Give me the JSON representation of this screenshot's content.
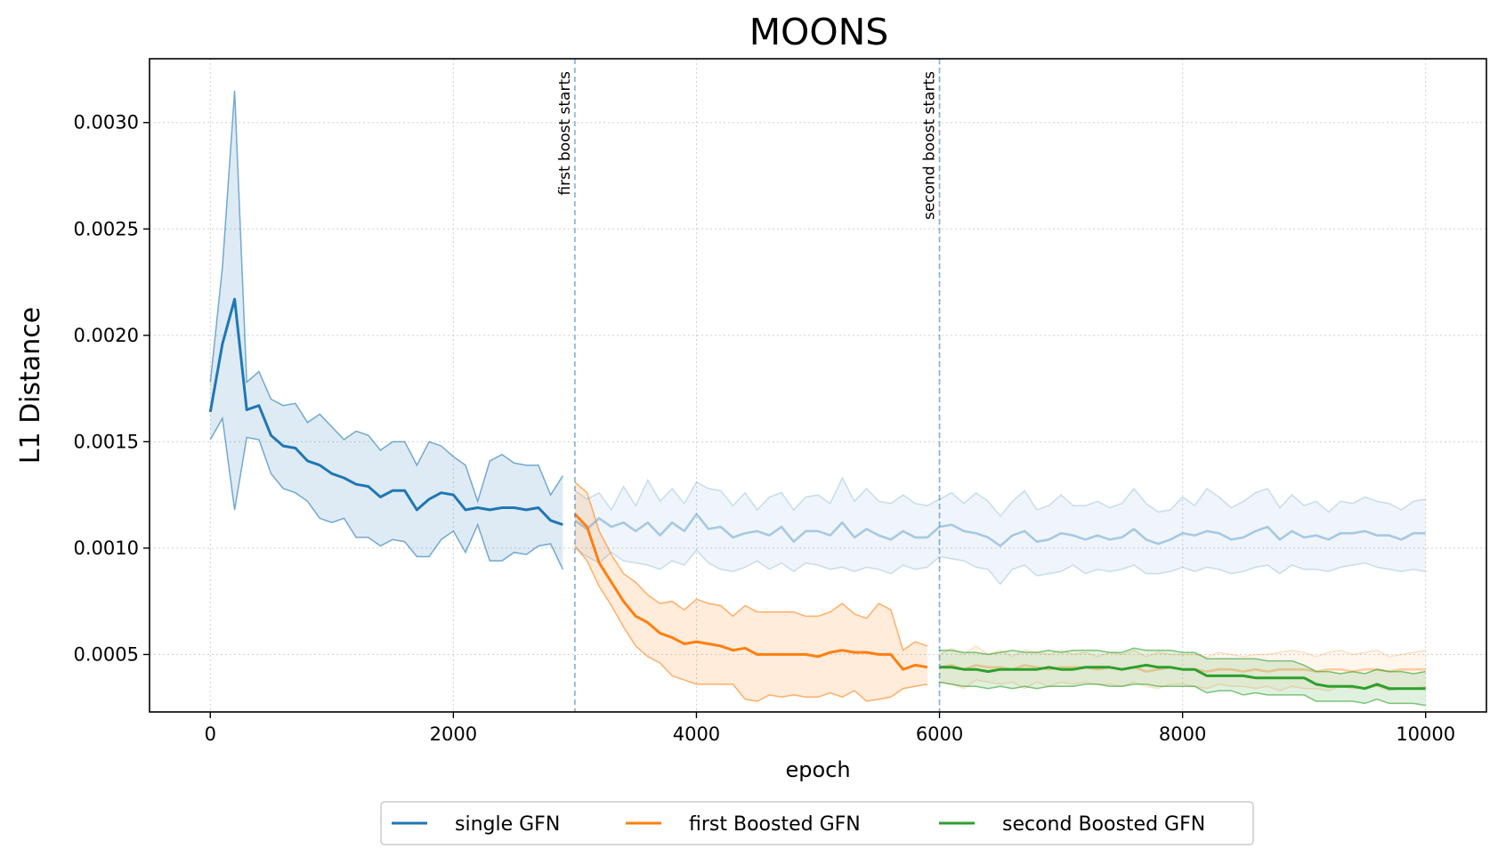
{
  "chart_data": {
    "type": "line",
    "title": "MOONS",
    "xlabel": "epoch",
    "ylabel": "L1 Distance",
    "xlim": [
      -500,
      10500
    ],
    "ylim": [
      0.00023,
      0.0033
    ],
    "xticks": [
      0,
      2000,
      4000,
      6000,
      8000,
      10000
    ],
    "xtick_labels": [
      "0",
      "2000",
      "4000",
      "6000",
      "8000",
      "10000"
    ],
    "yticks": [
      0.0005,
      0.001,
      0.0015,
      0.002,
      0.0025,
      0.003
    ],
    "ytick_labels": [
      "0.0005",
      "0.0010",
      "0.0015",
      "0.0020",
      "0.0025",
      "0.0030"
    ],
    "grid": true,
    "legend_position": "bottom-center",
    "annotations": [
      {
        "x": 3000,
        "text": "first boost starts"
      },
      {
        "x": 6000,
        "text": "second boost starts"
      }
    ],
    "series": [
      {
        "name": "single GFN",
        "color": "#1f77b4",
        "x": [
          0,
          100,
          200,
          300,
          400,
          500,
          600,
          700,
          800,
          900,
          1000,
          1100,
          1200,
          1300,
          1400,
          1500,
          1600,
          1700,
          1800,
          1900,
          2000,
          2100,
          2200,
          2300,
          2400,
          2500,
          2600,
          2700,
          2800,
          2900
        ],
        "mean": [
          0.00164,
          0.00196,
          0.00217,
          0.00165,
          0.00167,
          0.00153,
          0.00148,
          0.00147,
          0.00141,
          0.00139,
          0.00135,
          0.00133,
          0.0013,
          0.00129,
          0.00124,
          0.00127,
          0.00127,
          0.00118,
          0.00123,
          0.00126,
          0.00125,
          0.00118,
          0.00119,
          0.00118,
          0.00119,
          0.00119,
          0.00118,
          0.00119,
          0.00113,
          0.00111
        ],
        "upper": [
          0.00178,
          0.00232,
          0.00315,
          0.00178,
          0.00183,
          0.0017,
          0.00167,
          0.00168,
          0.00159,
          0.00163,
          0.00157,
          0.00151,
          0.00155,
          0.00153,
          0.00146,
          0.0015,
          0.0015,
          0.00139,
          0.0015,
          0.00148,
          0.00143,
          0.00139,
          0.00122,
          0.00141,
          0.00144,
          0.0014,
          0.00139,
          0.00139,
          0.00125,
          0.00134
        ],
        "lower": [
          0.00151,
          0.00161,
          0.00118,
          0.00152,
          0.00151,
          0.00135,
          0.00128,
          0.00126,
          0.00122,
          0.00114,
          0.00112,
          0.00114,
          0.00105,
          0.00105,
          0.00101,
          0.00104,
          0.00103,
          0.00096,
          0.00096,
          0.00104,
          0.00108,
          0.00098,
          0.00111,
          0.00094,
          0.00094,
          0.00098,
          0.00097,
          0.00101,
          0.00102,
          0.0009
        ],
        "continuation": {
          "x": [
            3000,
            3100,
            3200,
            3300,
            3400,
            3500,
            3600,
            3700,
            3800,
            3900,
            4000,
            4100,
            4200,
            4300,
            4400,
            4500,
            4600,
            4700,
            4800,
            4900,
            5000,
            5100,
            5200,
            5300,
            5400,
            5500,
            5600,
            5700,
            5800,
            5900,
            6000,
            6100,
            6200,
            6300,
            6400,
            6500,
            6600,
            6700,
            6800,
            6900,
            7000,
            7100,
            7200,
            7300,
            7400,
            7500,
            7600,
            7700,
            7800,
            7900,
            8000,
            8100,
            8200,
            8300,
            8400,
            8500,
            8600,
            8700,
            8800,
            8900,
            9000,
            9100,
            9200,
            9300,
            9400,
            9500,
            9600,
            9700,
            9800,
            9900,
            10000
          ],
          "mean": [
            0.00113,
            0.00109,
            0.00114,
            0.0011,
            0.00112,
            0.00108,
            0.00112,
            0.00106,
            0.00112,
            0.00108,
            0.00116,
            0.00109,
            0.0011,
            0.00105,
            0.00107,
            0.00108,
            0.00106,
            0.0011,
            0.00103,
            0.00108,
            0.00108,
            0.00106,
            0.00112,
            0.00105,
            0.00109,
            0.00106,
            0.00104,
            0.00108,
            0.00105,
            0.00105,
            0.0011,
            0.00111,
            0.00108,
            0.00107,
            0.00105,
            0.00101,
            0.00106,
            0.00108,
            0.00103,
            0.00104,
            0.00107,
            0.00106,
            0.00104,
            0.00106,
            0.00104,
            0.00105,
            0.00109,
            0.00104,
            0.00102,
            0.00104,
            0.00107,
            0.00106,
            0.00108,
            0.00107,
            0.00104,
            0.00105,
            0.00108,
            0.0011,
            0.00104,
            0.00108,
            0.00105,
            0.00106,
            0.00104,
            0.00107,
            0.00107,
            0.00108,
            0.00106,
            0.00106,
            0.00104,
            0.00107,
            0.00107
          ],
          "upper": [
            0.00127,
            0.00123,
            0.00126,
            0.00118,
            0.00129,
            0.0012,
            0.00132,
            0.00122,
            0.00128,
            0.00121,
            0.00131,
            0.00128,
            0.00127,
            0.0012,
            0.00126,
            0.00118,
            0.00124,
            0.00126,
            0.00118,
            0.00124,
            0.00125,
            0.00121,
            0.00133,
            0.00122,
            0.00128,
            0.00122,
            0.00121,
            0.00125,
            0.00121,
            0.0012,
            0.00123,
            0.00126,
            0.00121,
            0.00126,
            0.00122,
            0.00115,
            0.00122,
            0.00127,
            0.00118,
            0.0012,
            0.00125,
            0.0012,
            0.0012,
            0.00122,
            0.00119,
            0.00121,
            0.00128,
            0.00121,
            0.00117,
            0.00118,
            0.00124,
            0.0012,
            0.00128,
            0.00124,
            0.00119,
            0.00122,
            0.00126,
            0.00128,
            0.00119,
            0.00125,
            0.0012,
            0.00122,
            0.00117,
            0.00122,
            0.00121,
            0.00124,
            0.00122,
            0.00121,
            0.00118,
            0.00122,
            0.00123
          ],
          "lower": [
            0.001,
            0.00096,
            0.00093,
            0.00098,
            0.00094,
            0.00093,
            0.00092,
            0.0009,
            0.00094,
            0.00092,
            0.00099,
            0.00093,
            0.0009,
            0.00089,
            0.00091,
            0.00094,
            0.0009,
            0.00093,
            0.00089,
            0.00093,
            0.00092,
            0.0009,
            0.00091,
            0.00089,
            0.00091,
            0.0009,
            0.00088,
            0.00092,
            0.0009,
            0.00091,
            0.00096,
            0.00095,
            0.00094,
            0.00091,
            0.0009,
            0.00083,
            0.0009,
            0.00092,
            0.00087,
            0.00088,
            0.00089,
            0.00092,
            0.00088,
            0.0009,
            0.00089,
            0.0009,
            0.00092,
            0.00088,
            0.00088,
            0.00089,
            0.00091,
            0.00089,
            0.00091,
            0.0009,
            0.00088,
            0.00089,
            0.00091,
            0.00092,
            0.00088,
            0.00092,
            0.0009,
            0.0009,
            0.00089,
            0.00091,
            0.00092,
            0.00093,
            0.00091,
            0.0009,
            0.00089,
            0.0009,
            0.00089
          ]
        }
      },
      {
        "name": "first Boosted GFN",
        "color": "#ff7f0e",
        "x": [
          3000,
          3100,
          3200,
          3300,
          3400,
          3500,
          3600,
          3700,
          3800,
          3900,
          4000,
          4100,
          4200,
          4300,
          4400,
          4500,
          4600,
          4700,
          4800,
          4900,
          5000,
          5100,
          5200,
          5300,
          5400,
          5500,
          5600,
          5700,
          5800,
          5900
        ],
        "mean": [
          0.00116,
          0.0011,
          0.00093,
          0.00084,
          0.00075,
          0.00068,
          0.00065,
          0.0006,
          0.00058,
          0.00055,
          0.00056,
          0.00055,
          0.00054,
          0.00052,
          0.00053,
          0.0005,
          0.0005,
          0.0005,
          0.0005,
          0.0005,
          0.00049,
          0.00051,
          0.00052,
          0.00051,
          0.00051,
          0.0005,
          0.0005,
          0.00043,
          0.00045,
          0.00044
        ],
        "upper": [
          0.00131,
          0.00126,
          0.00108,
          0.00097,
          0.00088,
          0.00084,
          0.00078,
          0.00074,
          0.00075,
          0.00071,
          0.00076,
          0.00074,
          0.00073,
          0.00068,
          0.00073,
          0.0007,
          0.0007,
          0.0007,
          0.0007,
          0.00068,
          0.00068,
          0.0007,
          0.00074,
          0.00069,
          0.00067,
          0.00074,
          0.00071,
          0.00052,
          0.00056,
          0.00054
        ],
        "lower": [
          0.00101,
          0.00094,
          0.00082,
          0.00073,
          0.00063,
          0.00054,
          0.00049,
          0.00046,
          0.0004,
          0.00038,
          0.00036,
          0.00036,
          0.00036,
          0.00036,
          0.00029,
          0.00028,
          0.00031,
          0.0003,
          0.00031,
          0.0003,
          0.0003,
          0.00032,
          0.0003,
          0.00033,
          0.00028,
          0.00029,
          0.0003,
          0.00034,
          0.00035,
          0.00036
        ],
        "continuation": {
          "x": [
            6000,
            6100,
            6200,
            6300,
            6400,
            6500,
            6600,
            6700,
            6800,
            6900,
            7000,
            7100,
            7200,
            7300,
            7400,
            7500,
            7600,
            7700,
            7800,
            7900,
            8000,
            8100,
            8200,
            8300,
            8400,
            8500,
            8600,
            8700,
            8800,
            8900,
            9000,
            9100,
            9200,
            9300,
            9400,
            9500,
            9600,
            9700,
            9800,
            9900,
            10000
          ],
          "mean": [
            0.00044,
            0.00045,
            0.00043,
            0.00045,
            0.00044,
            0.00044,
            0.00043,
            0.00045,
            0.00044,
            0.00043,
            0.00044,
            0.00044,
            0.00044,
            0.00043,
            0.00044,
            0.00043,
            0.00044,
            0.00042,
            0.00043,
            0.00044,
            0.00043,
            0.00043,
            0.00042,
            0.00043,
            0.00043,
            0.00042,
            0.00043,
            0.00042,
            0.00043,
            0.00043,
            0.00043,
            0.00042,
            0.00043,
            0.00043,
            0.00042,
            0.00043,
            0.00043,
            0.00042,
            0.00043,
            0.00043,
            0.00043
          ],
          "upper": [
            0.0005,
            0.00053,
            0.0005,
            0.00054,
            0.0005,
            0.00052,
            0.00049,
            0.00052,
            0.00051,
            0.0005,
            0.00052,
            0.0005,
            0.00051,
            0.00049,
            0.00051,
            0.0005,
            0.00052,
            0.00049,
            0.00051,
            0.0005,
            0.0005,
            0.0005,
            0.00049,
            0.00051,
            0.0005,
            0.00049,
            0.0005,
            0.0005,
            0.00051,
            0.00052,
            0.00051,
            0.00049,
            0.00051,
            0.00052,
            0.0005,
            0.00051,
            0.00052,
            0.00049,
            0.0005,
            0.00051,
            0.00052
          ],
          "lower": [
            0.00037,
            0.00036,
            0.00034,
            0.00038,
            0.00037,
            0.00036,
            0.00037,
            0.00034,
            0.00037,
            0.00035,
            0.00037,
            0.00036,
            0.00037,
            0.00036,
            0.00036,
            0.00035,
            0.00037,
            0.00035,
            0.00034,
            0.00036,
            0.00036,
            0.00035,
            0.00034,
            0.00036,
            0.00035,
            0.00035,
            0.00034,
            0.00035,
            0.00033,
            0.00035,
            0.00034,
            0.00034,
            0.00033,
            0.00035,
            0.00034,
            0.00034,
            0.00035,
            0.00033,
            0.00034,
            0.00034,
            0.00035
          ]
        }
      },
      {
        "name": "second Boosted GFN",
        "color": "#2ca02c",
        "x": [
          6000,
          6100,
          6200,
          6300,
          6400,
          6500,
          6600,
          6700,
          6800,
          6900,
          7000,
          7100,
          7200,
          7300,
          7400,
          7500,
          7600,
          7700,
          7800,
          7900,
          8000,
          8100,
          8200,
          8300,
          8400,
          8500,
          8600,
          8700,
          8800,
          8900,
          9000,
          9100,
          9200,
          9300,
          9400,
          9500,
          9600,
          9700,
          9800,
          9900,
          10000
        ],
        "mean": [
          0.00044,
          0.00044,
          0.00043,
          0.00043,
          0.00042,
          0.00043,
          0.00043,
          0.00043,
          0.00043,
          0.00044,
          0.00043,
          0.00043,
          0.00044,
          0.00044,
          0.00044,
          0.00043,
          0.00044,
          0.00045,
          0.00044,
          0.00044,
          0.00043,
          0.00043,
          0.0004,
          0.0004,
          0.0004,
          0.0004,
          0.00039,
          0.00039,
          0.00039,
          0.00039,
          0.00039,
          0.00036,
          0.00035,
          0.00035,
          0.00035,
          0.00034,
          0.00036,
          0.00034,
          0.00034,
          0.00034,
          0.00034
        ],
        "upper": [
          0.00052,
          0.00052,
          0.00051,
          0.00051,
          0.0005,
          0.00051,
          0.00052,
          0.00051,
          0.00051,
          0.00052,
          0.00051,
          0.00052,
          0.00052,
          0.00052,
          0.00051,
          0.00051,
          0.00053,
          0.00052,
          0.00052,
          0.00052,
          0.00051,
          0.00051,
          0.00048,
          0.00048,
          0.00048,
          0.00048,
          0.00048,
          0.00047,
          0.00047,
          0.00047,
          0.00045,
          0.00042,
          0.00042,
          0.00041,
          0.00042,
          0.00041,
          0.00043,
          0.00042,
          0.00042,
          0.00041,
          0.00042
        ],
        "lower": [
          0.00037,
          0.00036,
          0.00035,
          0.00035,
          0.00034,
          0.00035,
          0.00034,
          0.00035,
          0.00034,
          0.00035,
          0.00035,
          0.00035,
          0.00036,
          0.00036,
          0.00035,
          0.00035,
          0.00036,
          0.00036,
          0.00035,
          0.00035,
          0.00035,
          0.00035,
          0.00032,
          0.00033,
          0.00033,
          0.00031,
          0.00032,
          0.00031,
          0.00031,
          0.00031,
          0.00031,
          0.00028,
          0.00028,
          0.00028,
          0.00028,
          0.00027,
          0.00029,
          0.00027,
          0.00027,
          0.00027,
          0.00026
        ]
      }
    ]
  }
}
